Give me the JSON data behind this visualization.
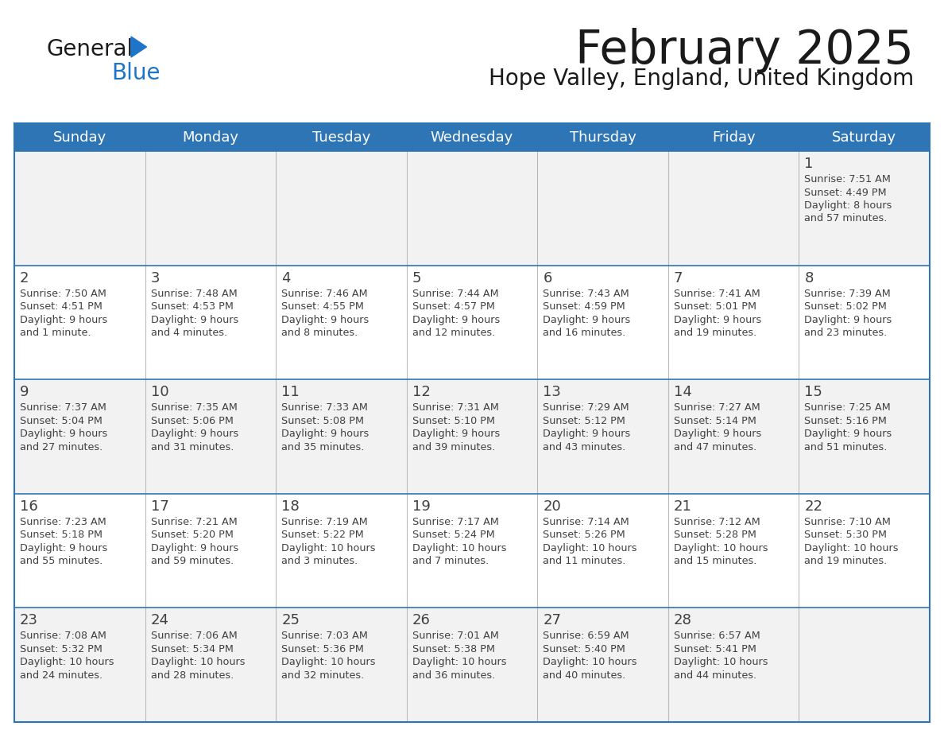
{
  "title": "February 2025",
  "subtitle": "Hope Valley, England, United Kingdom",
  "days_of_week": [
    "Sunday",
    "Monday",
    "Tuesday",
    "Wednesday",
    "Thursday",
    "Friday",
    "Saturday"
  ],
  "header_bg": "#2E75B6",
  "header_text": "#FFFFFF",
  "cell_bg_white": "#FFFFFF",
  "cell_bg_gray": "#F2F2F2",
  "cell_text": "#404040",
  "day_num_color": "#404040",
  "border_color": "#2E75B6",
  "row_divider_color": "#2E75B6",
  "col_divider_color": "#BBBBBB",
  "title_color": "#1A1A1A",
  "subtitle_color": "#1A1A1A",
  "logo_general_color": "#1A1A1A",
  "logo_blue_color": "#1E74C8",
  "calendar_data": [
    {
      "day": 1,
      "col": 6,
      "row": 0,
      "sunrise": "7:51 AM",
      "sunset": "4:49 PM",
      "daylight": "8 hours and 57 minutes."
    },
    {
      "day": 2,
      "col": 0,
      "row": 1,
      "sunrise": "7:50 AM",
      "sunset": "4:51 PM",
      "daylight": "9 hours and 1 minute."
    },
    {
      "day": 3,
      "col": 1,
      "row": 1,
      "sunrise": "7:48 AM",
      "sunset": "4:53 PM",
      "daylight": "9 hours and 4 minutes."
    },
    {
      "day": 4,
      "col": 2,
      "row": 1,
      "sunrise": "7:46 AM",
      "sunset": "4:55 PM",
      "daylight": "9 hours and 8 minutes."
    },
    {
      "day": 5,
      "col": 3,
      "row": 1,
      "sunrise": "7:44 AM",
      "sunset": "4:57 PM",
      "daylight": "9 hours and 12 minutes."
    },
    {
      "day": 6,
      "col": 4,
      "row": 1,
      "sunrise": "7:43 AM",
      "sunset": "4:59 PM",
      "daylight": "9 hours and 16 minutes."
    },
    {
      "day": 7,
      "col": 5,
      "row": 1,
      "sunrise": "7:41 AM",
      "sunset": "5:01 PM",
      "daylight": "9 hours and 19 minutes."
    },
    {
      "day": 8,
      "col": 6,
      "row": 1,
      "sunrise": "7:39 AM",
      "sunset": "5:02 PM",
      "daylight": "9 hours and 23 minutes."
    },
    {
      "day": 9,
      "col": 0,
      "row": 2,
      "sunrise": "7:37 AM",
      "sunset": "5:04 PM",
      "daylight": "9 hours and 27 minutes."
    },
    {
      "day": 10,
      "col": 1,
      "row": 2,
      "sunrise": "7:35 AM",
      "sunset": "5:06 PM",
      "daylight": "9 hours and 31 minutes."
    },
    {
      "day": 11,
      "col": 2,
      "row": 2,
      "sunrise": "7:33 AM",
      "sunset": "5:08 PM",
      "daylight": "9 hours and 35 minutes."
    },
    {
      "day": 12,
      "col": 3,
      "row": 2,
      "sunrise": "7:31 AM",
      "sunset": "5:10 PM",
      "daylight": "9 hours and 39 minutes."
    },
    {
      "day": 13,
      "col": 4,
      "row": 2,
      "sunrise": "7:29 AM",
      "sunset": "5:12 PM",
      "daylight": "9 hours and 43 minutes."
    },
    {
      "day": 14,
      "col": 5,
      "row": 2,
      "sunrise": "7:27 AM",
      "sunset": "5:14 PM",
      "daylight": "9 hours and 47 minutes."
    },
    {
      "day": 15,
      "col": 6,
      "row": 2,
      "sunrise": "7:25 AM",
      "sunset": "5:16 PM",
      "daylight": "9 hours and 51 minutes."
    },
    {
      "day": 16,
      "col": 0,
      "row": 3,
      "sunrise": "7:23 AM",
      "sunset": "5:18 PM",
      "daylight": "9 hours and 55 minutes."
    },
    {
      "day": 17,
      "col": 1,
      "row": 3,
      "sunrise": "7:21 AM",
      "sunset": "5:20 PM",
      "daylight": "9 hours and 59 minutes."
    },
    {
      "day": 18,
      "col": 2,
      "row": 3,
      "sunrise": "7:19 AM",
      "sunset": "5:22 PM",
      "daylight": "10 hours and 3 minutes."
    },
    {
      "day": 19,
      "col": 3,
      "row": 3,
      "sunrise": "7:17 AM",
      "sunset": "5:24 PM",
      "daylight": "10 hours and 7 minutes."
    },
    {
      "day": 20,
      "col": 4,
      "row": 3,
      "sunrise": "7:14 AM",
      "sunset": "5:26 PM",
      "daylight": "10 hours and 11 minutes."
    },
    {
      "day": 21,
      "col": 5,
      "row": 3,
      "sunrise": "7:12 AM",
      "sunset": "5:28 PM",
      "daylight": "10 hours and 15 minutes."
    },
    {
      "day": 22,
      "col": 6,
      "row": 3,
      "sunrise": "7:10 AM",
      "sunset": "5:30 PM",
      "daylight": "10 hours and 19 minutes."
    },
    {
      "day": 23,
      "col": 0,
      "row": 4,
      "sunrise": "7:08 AM",
      "sunset": "5:32 PM",
      "daylight": "10 hours and 24 minutes."
    },
    {
      "day": 24,
      "col": 1,
      "row": 4,
      "sunrise": "7:06 AM",
      "sunset": "5:34 PM",
      "daylight": "10 hours and 28 minutes."
    },
    {
      "day": 25,
      "col": 2,
      "row": 4,
      "sunrise": "7:03 AM",
      "sunset": "5:36 PM",
      "daylight": "10 hours and 32 minutes."
    },
    {
      "day": 26,
      "col": 3,
      "row": 4,
      "sunrise": "7:01 AM",
      "sunset": "5:38 PM",
      "daylight": "10 hours and 36 minutes."
    },
    {
      "day": 27,
      "col": 4,
      "row": 4,
      "sunrise": "6:59 AM",
      "sunset": "5:40 PM",
      "daylight": "10 hours and 40 minutes."
    },
    {
      "day": 28,
      "col": 5,
      "row": 4,
      "sunrise": "6:57 AM",
      "sunset": "5:41 PM",
      "daylight": "10 hours and 44 minutes."
    }
  ]
}
